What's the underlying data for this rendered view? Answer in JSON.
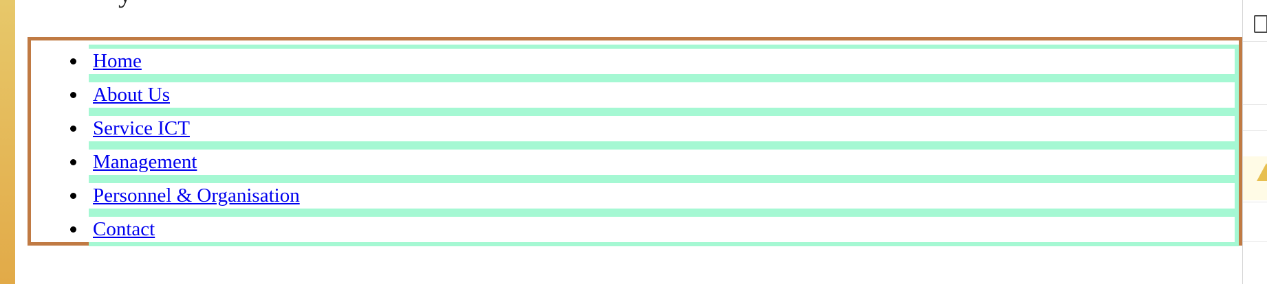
{
  "nav": {
    "items": [
      {
        "label": "Home"
      },
      {
        "label": "About Us"
      },
      {
        "label": "Service ICT"
      },
      {
        "label": "Management"
      },
      {
        "label": "Personnel & Organisation"
      },
      {
        "label": "Contact"
      }
    ]
  },
  "colors": {
    "border": "#c07a43",
    "item_background": "#a5f8d3",
    "link": "#0000ee"
  }
}
